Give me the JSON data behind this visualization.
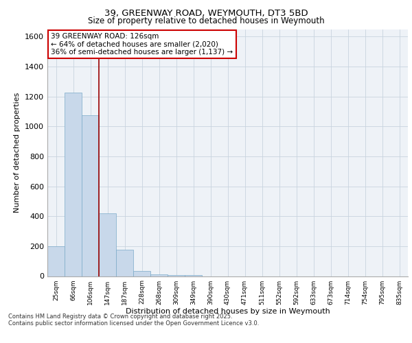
{
  "title_line1": "39, GREENWAY ROAD, WEYMOUTH, DT3 5BD",
  "title_line2": "Size of property relative to detached houses in Weymouth",
  "xlabel": "Distribution of detached houses by size in Weymouth",
  "ylabel": "Number of detached properties",
  "categories": [
    "25sqm",
    "66sqm",
    "106sqm",
    "147sqm",
    "187sqm",
    "228sqm",
    "268sqm",
    "309sqm",
    "349sqm",
    "390sqm",
    "430sqm",
    "471sqm",
    "511sqm",
    "552sqm",
    "592sqm",
    "633sqm",
    "673sqm",
    "714sqm",
    "754sqm",
    "795sqm",
    "835sqm"
  ],
  "values": [
    200,
    1225,
    1075,
    420,
    175,
    35,
    10,
    5,
    5,
    0,
    0,
    0,
    0,
    0,
    0,
    0,
    0,
    0,
    0,
    0,
    0
  ],
  "bar_color": "#c8d8ea",
  "bar_edge_color": "#7aaac8",
  "grid_color": "#c8d4df",
  "background_color": "#eef2f7",
  "red_line_x": 2.48,
  "annotation_text": "39 GREENWAY ROAD: 126sqm\n← 64% of detached houses are smaller (2,020)\n36% of semi-detached houses are larger (1,137) →",
  "annotation_box_color": "#cc0000",
  "ylim": [
    0,
    1650
  ],
  "yticks": [
    0,
    200,
    400,
    600,
    800,
    1000,
    1200,
    1400,
    1600
  ],
  "footnote1": "Contains HM Land Registry data © Crown copyright and database right 2025.",
  "footnote2": "Contains public sector information licensed under the Open Government Licence v3.0."
}
